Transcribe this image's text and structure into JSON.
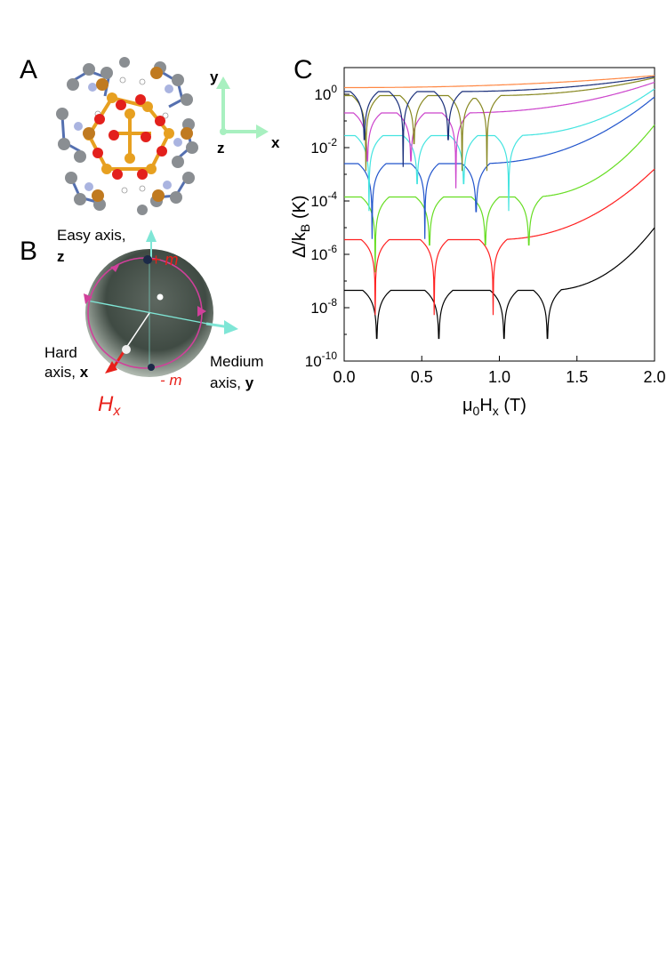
{
  "panels": {
    "a": {
      "letter": "A",
      "axes": {
        "y": "y",
        "x": "x",
        "z": "z"
      }
    },
    "b": {
      "letter": "B",
      "easy_axis_line1": "Easy axis,",
      "easy_axis_z": "z",
      "plus_m": "+ m",
      "minus_m": "- m",
      "hard_axis_line1": "Hard",
      "hard_axis_line2": "axis, ",
      "hard_axis_x": "x",
      "medium_axis_line1": "Medium",
      "medium_axis_line2": "axis, ",
      "medium_axis_y": "y",
      "field_label": "H",
      "field_sub": "x"
    },
    "c": {
      "letter": "C"
    }
  },
  "colors": {
    "axis_green": "#a8f0c0",
    "sphere_dark": "#2f3b33",
    "ring": "#d0409a",
    "red": "#e8201a",
    "cyan_axis": "#7fe6d6"
  },
  "chart_data": {
    "type": "line",
    "xlabel": "μ0Hx (T)",
    "ylabel": "Δ/kB (K)",
    "xlim": [
      0.0,
      2.0
    ],
    "ylim_log10": [
      -10,
      1
    ],
    "yscale": "log",
    "x_ticks": [
      "0.0",
      "0.5",
      "1.0",
      "1.5",
      "2.0"
    ],
    "y_ticks": [
      "10-10",
      "10-8",
      "10-6",
      "10-4",
      "10-2",
      "100"
    ],
    "series": [
      {
        "color": "#000000",
        "base_log": -7.35,
        "dips": [
          0.21,
          0.61,
          1.03,
          1.31
        ],
        "end_log": -5.0
      },
      {
        "color": "#ff2020",
        "base_log": -5.45,
        "dips": [
          0.2,
          0.58,
          0.96
        ],
        "end_log": -2.8
      },
      {
        "color": "#66dd22",
        "base_log": -3.85,
        "dips": [
          0.2,
          0.55,
          0.91,
          1.19
        ],
        "end_log": -1.15
      },
      {
        "color": "#2255cc",
        "base_log": -2.6,
        "dips": [
          0.18,
          0.52,
          0.85
        ],
        "end_log": -0.1
      },
      {
        "color": "#44e4e0",
        "base_log": -1.55,
        "dips": [
          0.16,
          0.47,
          0.77,
          1.06
        ],
        "end_log": 0.2
      },
      {
        "color": "#cc44cc",
        "base_log": -0.7,
        "dips": [
          0.15,
          0.43,
          0.72
        ],
        "end_log": 0.45
      },
      {
        "color": "#888822",
        "base_log": -0.05,
        "dips": [
          0.14,
          0.45,
          0.76,
          0.92
        ],
        "end_log": 0.62
      },
      {
        "color": "#1a2f7a",
        "base_log": 0.1,
        "dips": [
          0.13,
          0.38,
          0.67
        ],
        "end_log": 0.66
      },
      {
        "color": "#ff8844",
        "base_log": 0.25,
        "dips": [],
        "end_log": 0.7
      }
    ]
  }
}
